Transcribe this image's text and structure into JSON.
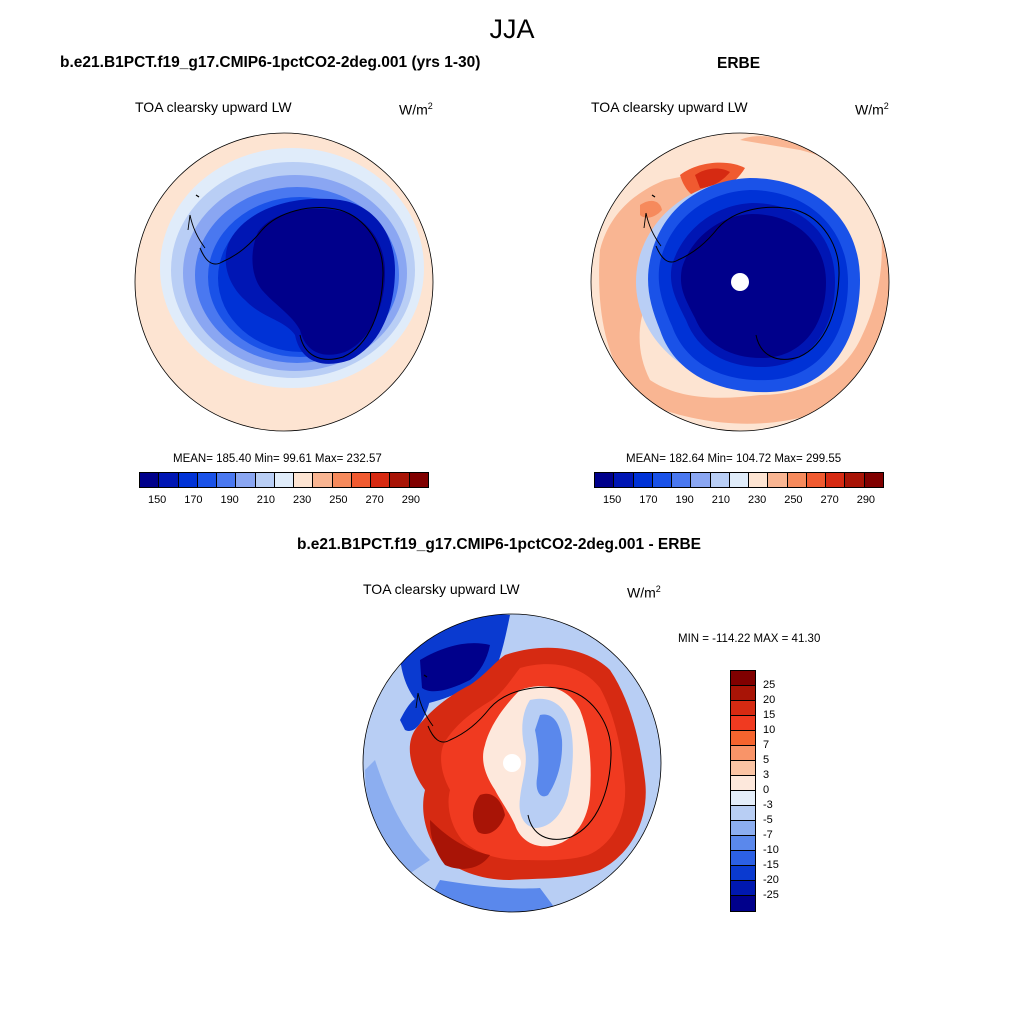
{
  "season": "JJA",
  "colors": {
    "abs_scale": [
      "#00008b",
      "#0016b4",
      "#0032d6",
      "#1a52e8",
      "#4a78f0",
      "#8aa6f2",
      "#b9cef5",
      "#e0ecfa",
      "#fde4d2",
      "#f9b592",
      "#f68a5c",
      "#f05a30",
      "#d62a12",
      "#a81406",
      "#800000"
    ],
    "diff_scale": [
      "#800000",
      "#a81406",
      "#d62a12",
      "#f03a20",
      "#f6642e",
      "#f99468",
      "#fbc4a4",
      "#fde8dc",
      "#e4eefa",
      "#b8cef4",
      "#8caef0",
      "#5a88ec",
      "#2c60e4",
      "#0a3ad0",
      "#0018b0",
      "#00008b"
    ]
  },
  "chart_data": [
    {
      "type": "heatmap",
      "projection": "south-polar-stereographic",
      "title": "b.e21.B1PCT.f19_g17.CMIP6-1pctCO2-2deg.001 (yrs 1-30)",
      "variable": "TOA clearsky upward LW",
      "units": "W/m",
      "units_sup": "2",
      "stats": "MEAN= 185.40  Min=  99.61  Max= 232.57",
      "mean": 185.4,
      "min": 99.61,
      "max": 232.57,
      "colorbar_ticks": [
        "150",
        "170",
        "190",
        "210",
        "230",
        "250",
        "270",
        "290"
      ],
      "colorbar_range": [
        140,
        300
      ],
      "colorbar_orientation": "horizontal"
    },
    {
      "type": "heatmap",
      "projection": "south-polar-stereographic",
      "title": "ERBE",
      "variable": "TOA clearsky upward LW",
      "units": "W/m",
      "units_sup": "2",
      "stats": "MEAN= 182.64  Min= 104.72  Max= 299.55",
      "mean": 182.64,
      "min": 104.72,
      "max": 299.55,
      "colorbar_ticks": [
        "150",
        "170",
        "190",
        "210",
        "230",
        "250",
        "270",
        "290"
      ],
      "colorbar_range": [
        140,
        300
      ],
      "colorbar_orientation": "horizontal"
    },
    {
      "type": "heatmap",
      "projection": "south-polar-stereographic",
      "title": "b.e21.B1PCT.f19_g17.CMIP6-1pctCO2-2deg.001 - ERBE",
      "variable": "TOA clearsky upward LW",
      "units": "W/m",
      "units_sup": "2",
      "stats": "MIN = -114.22 MAX =  41.30",
      "min": -114.22,
      "max": 41.3,
      "colorbar_ticks": [
        "25",
        "20",
        "15",
        "10",
        "7",
        "5",
        "3",
        "0",
        "-3",
        "-5",
        "-7",
        "-10",
        "-15",
        "-20",
        "-25"
      ],
      "colorbar_orientation": "vertical"
    }
  ]
}
